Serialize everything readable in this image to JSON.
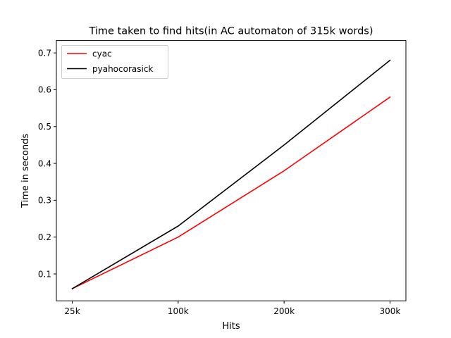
{
  "chart_data": {
    "type": "line",
    "title": "Time taken to find hits(in AC automaton of 315k words)",
    "xlabel": "Hits",
    "ylabel": "Time in seconds",
    "categories": [
      "25k",
      "100k",
      "200k",
      "300k"
    ],
    "ylim": [
      0.027,
      0.7335
    ],
    "yticks": [
      "0.1",
      "0.2",
      "0.3",
      "0.4",
      "0.5",
      "0.6",
      "0.7"
    ],
    "grid": false,
    "legend_position": "top-left",
    "series": [
      {
        "name": "cyac",
        "color": "#ff0000",
        "values": [
          0.06,
          0.2,
          0.38,
          0.58
        ]
      },
      {
        "name": "pyahocorasick",
        "color": "#000000",
        "values": [
          0.06,
          0.23,
          0.45,
          0.68
        ]
      }
    ]
  }
}
